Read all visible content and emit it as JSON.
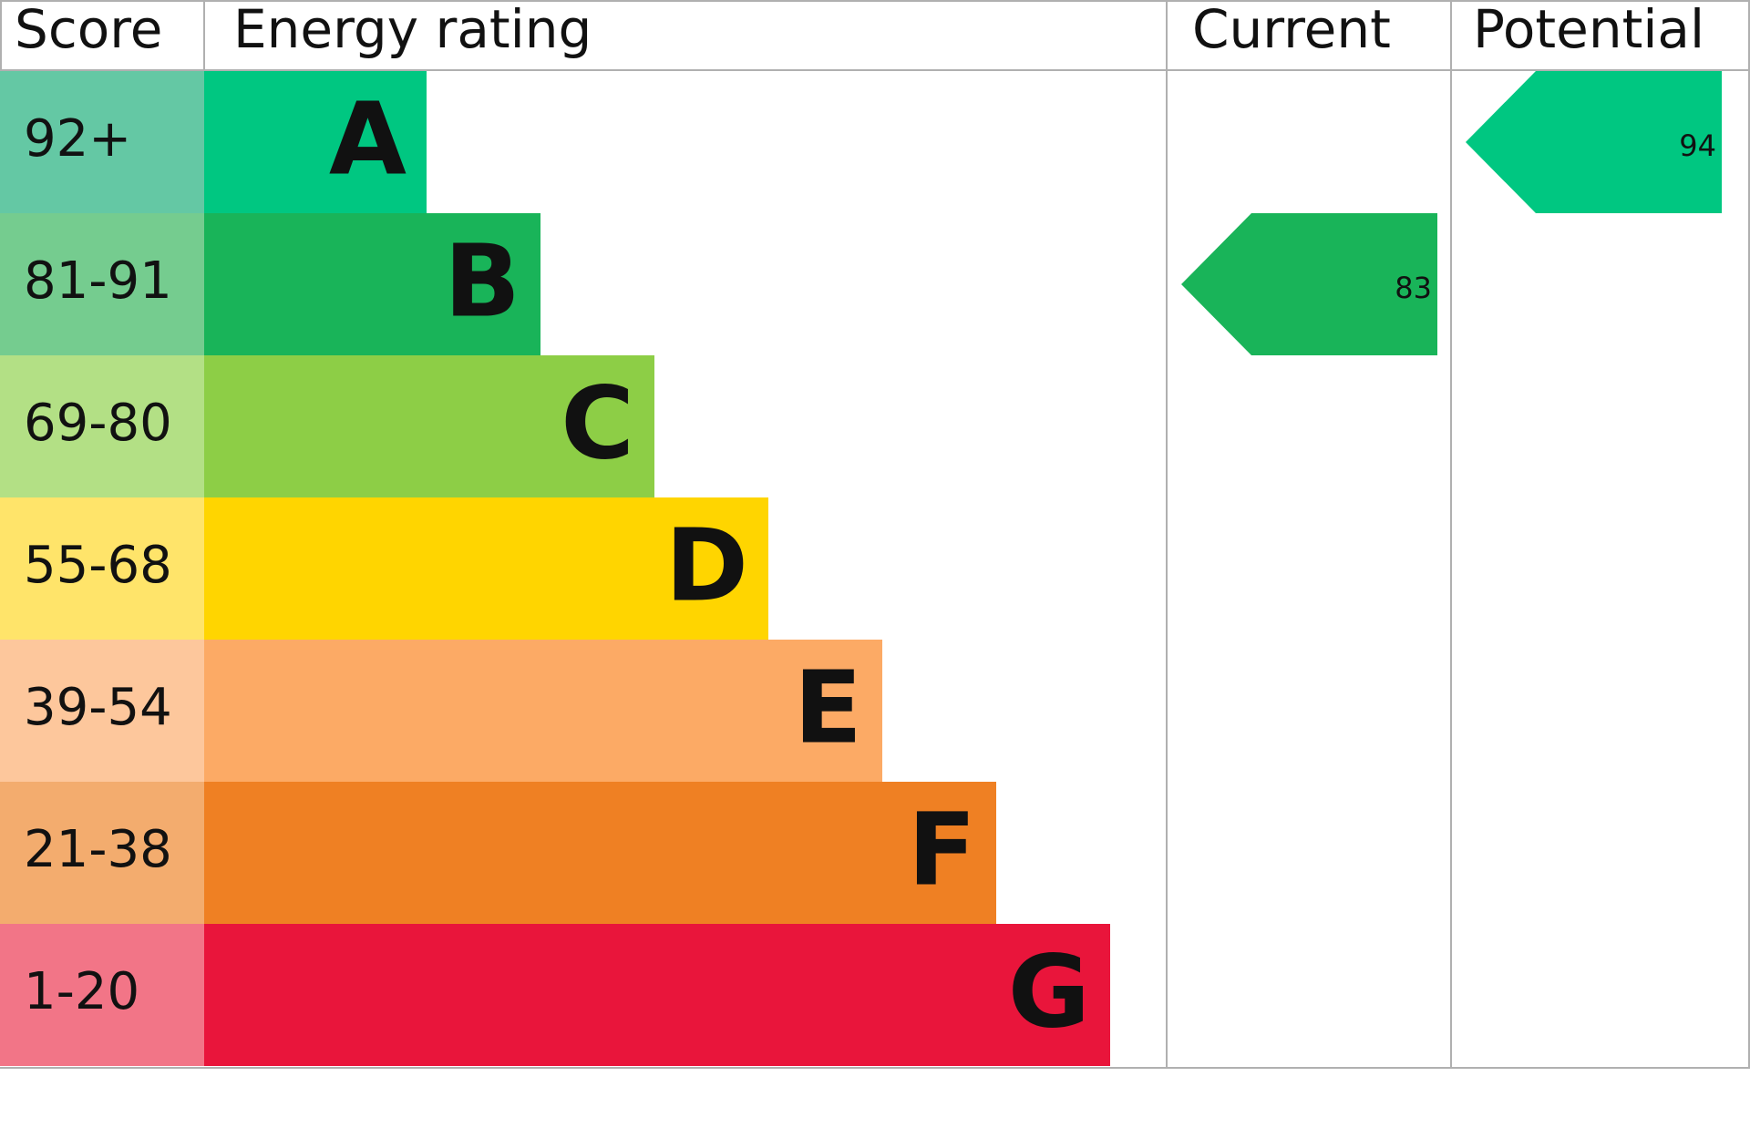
{
  "header": {
    "score": "Score",
    "rating": "Energy rating",
    "current": "Current",
    "potential": "Potential"
  },
  "bands": [
    {
      "score": "92+",
      "letter": "A",
      "color": "#00c781",
      "light": "#64c8a4"
    },
    {
      "score": "81-91",
      "letter": "B",
      "color": "#19b459",
      "light": "#75cc8f"
    },
    {
      "score": "69-80",
      "letter": "C",
      "color": "#8dce46",
      "light": "#b3e085"
    },
    {
      "score": "55-68",
      "letter": "D",
      "color": "#ffd500",
      "light": "#ffe46a"
    },
    {
      "score": "39-54",
      "letter": "E",
      "color": "#fcaa65",
      "light": "#fdc79c"
    },
    {
      "score": "21-38",
      "letter": "F",
      "color": "#ef8023",
      "light": "#f3ac6e"
    },
    {
      "score": "1-20",
      "letter": "G",
      "color": "#e9153b",
      "light": "#f27587"
    }
  ],
  "current": {
    "value": 83
  },
  "potential": {
    "value": 94
  }
}
